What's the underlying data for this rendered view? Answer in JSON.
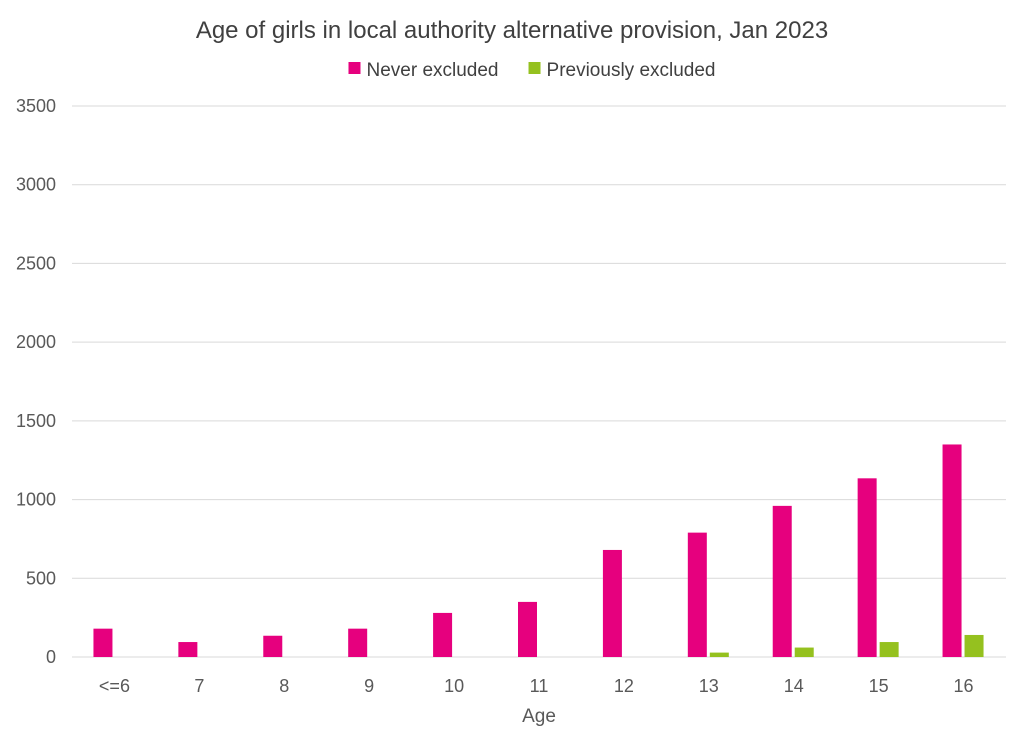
{
  "chart_data": {
    "type": "bar",
    "title": "Age of girls in local authority alternative provision, Jan 2023",
    "xlabel": "Age",
    "ylabel": "",
    "categories": [
      "<=6",
      "7",
      "8",
      "9",
      "10",
      "11",
      "12",
      "13",
      "14",
      "15",
      "16"
    ],
    "series": [
      {
        "name": "Never excluded",
        "color": "#e6007e",
        "values": [
          180,
          95,
          135,
          180,
          280,
          350,
          680,
          790,
          960,
          1135,
          1350
        ]
      },
      {
        "name": "Previously excluded",
        "color": "#95c11f",
        "values": [
          0,
          0,
          0,
          0,
          0,
          0,
          0,
          28,
          60,
          95,
          140
        ]
      }
    ],
    "ylim": [
      0,
      3500
    ],
    "yticks": [
      0,
      500,
      1000,
      1500,
      2000,
      2500,
      3000,
      3500
    ],
    "grid": true,
    "legend_position": "top"
  }
}
